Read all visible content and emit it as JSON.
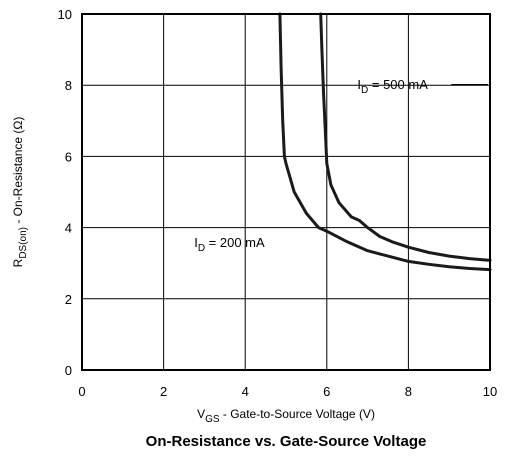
{
  "chart_data": {
    "type": "line",
    "title": "On-Resistance vs. Gate-Source Voltage",
    "xlabel": {
      "main": "V",
      "sub": "GS",
      "rest": " - Gate-to-Source Voltage (V)"
    },
    "ylabel": {
      "main": "R",
      "sub": "DS(on)",
      "rest": " - On-Resistance (Ω)"
    },
    "xlim": [
      0,
      10
    ],
    "ylim": [
      0,
      10
    ],
    "xticks": [
      0,
      2,
      4,
      6,
      8,
      10
    ],
    "yticks": [
      0,
      2,
      4,
      6,
      8,
      10
    ],
    "grid": true,
    "series": [
      {
        "name": "ID = 200 mA",
        "label": {
          "main": "I",
          "sub": "D",
          "rest": " = 200 mA"
        },
        "x": [
          4.85,
          4.88,
          4.92,
          4.96,
          5.0,
          5.2,
          5.5,
          5.8,
          6.0,
          6.5,
          7.0,
          7.5,
          8.0,
          8.5,
          9.0,
          9.5,
          10.0
        ],
        "y": [
          10.0,
          8.5,
          7.0,
          6.0,
          5.8,
          5.0,
          4.4,
          4.0,
          3.9,
          3.6,
          3.35,
          3.2,
          3.05,
          2.97,
          2.9,
          2.85,
          2.82
        ]
      },
      {
        "name": "ID = 500 mA",
        "label": {
          "main": "I",
          "sub": "D",
          "rest": " = 500 mA"
        },
        "x": [
          5.85,
          5.88,
          5.92,
          5.96,
          6.0,
          6.1,
          6.3,
          6.6,
          6.8,
          7.0,
          7.3,
          7.6,
          8.0,
          8.5,
          9.0,
          9.5,
          10.0
        ],
        "y": [
          10.0,
          9.0,
          7.8,
          6.8,
          5.8,
          5.2,
          4.7,
          4.3,
          4.2,
          4.0,
          3.75,
          3.6,
          3.45,
          3.3,
          3.2,
          3.13,
          3.08
        ]
      }
    ]
  }
}
